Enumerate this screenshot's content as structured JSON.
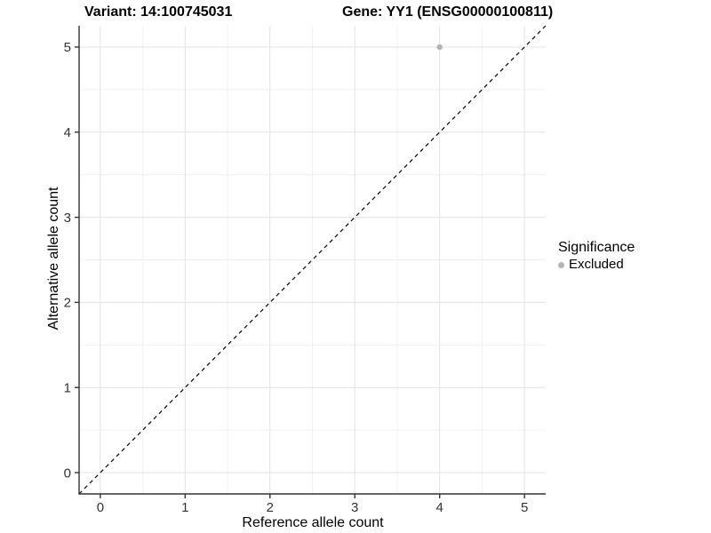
{
  "title": {
    "variant": "Variant: 14:100745031",
    "gene": "Gene: YY1 (ENSG00000100811)"
  },
  "chart_data": {
    "type": "scatter",
    "title": "Variant: 14:100745031   Gene: YY1 (ENSG00000100811)",
    "xlabel": "Reference allele count",
    "ylabel": "Alternative allele count",
    "xlim": [
      -0.25,
      5.25
    ],
    "ylim": [
      -0.25,
      5.25
    ],
    "x_ticks": [
      0,
      1,
      2,
      3,
      4,
      5
    ],
    "y_ticks": [
      0,
      1,
      2,
      3,
      4,
      5
    ],
    "minor_x_ticks": [
      0.5,
      1.5,
      2.5,
      3.5,
      4.5
    ],
    "minor_y_ticks": [
      0.5,
      1.5,
      2.5,
      3.5,
      4.5
    ],
    "grid": true,
    "series": [
      {
        "name": "Excluded",
        "color": "#b3b3b3",
        "points": [
          {
            "x": 4,
            "y": 5
          }
        ]
      }
    ],
    "abline": {
      "slope": 1,
      "intercept": 0,
      "style": "dashed",
      "color": "#000000"
    },
    "legend": {
      "title": "Significance",
      "position": "right",
      "items": [
        {
          "label": "Excluded",
          "color": "#b3b3b3"
        }
      ]
    }
  },
  "colors": {
    "background": "#ffffff",
    "grid_major": "#e3e3e3",
    "grid_minor": "#f1f1f1",
    "axis_line": "#333333",
    "tick_text": "#333333",
    "point": "#b3b3b3"
  }
}
